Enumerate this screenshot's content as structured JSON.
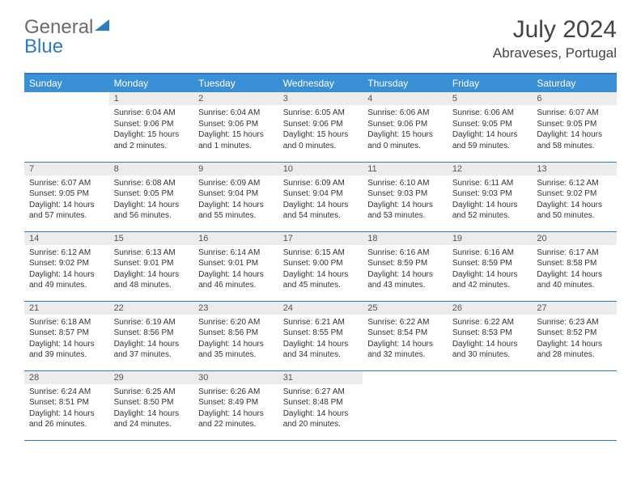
{
  "logo": {
    "part1": "General",
    "part2": "Blue"
  },
  "title": "July 2024",
  "location": "Abraveses, Portugal",
  "colors": {
    "header_bg": "#3b8fd4",
    "border": "#2f7bbf",
    "daynum_bg": "#ececec",
    "text": "#333333"
  },
  "weekdays": [
    "Sunday",
    "Monday",
    "Tuesday",
    "Wednesday",
    "Thursday",
    "Friday",
    "Saturday"
  ],
  "weeks": [
    [
      {
        "n": "",
        "sr": "",
        "ss": "",
        "dl": ""
      },
      {
        "n": "1",
        "sr": "Sunrise: 6:04 AM",
        "ss": "Sunset: 9:06 PM",
        "dl": "Daylight: 15 hours and 2 minutes."
      },
      {
        "n": "2",
        "sr": "Sunrise: 6:04 AM",
        "ss": "Sunset: 9:06 PM",
        "dl": "Daylight: 15 hours and 1 minutes."
      },
      {
        "n": "3",
        "sr": "Sunrise: 6:05 AM",
        "ss": "Sunset: 9:06 PM",
        "dl": "Daylight: 15 hours and 0 minutes."
      },
      {
        "n": "4",
        "sr": "Sunrise: 6:06 AM",
        "ss": "Sunset: 9:06 PM",
        "dl": "Daylight: 15 hours and 0 minutes."
      },
      {
        "n": "5",
        "sr": "Sunrise: 6:06 AM",
        "ss": "Sunset: 9:05 PM",
        "dl": "Daylight: 14 hours and 59 minutes."
      },
      {
        "n": "6",
        "sr": "Sunrise: 6:07 AM",
        "ss": "Sunset: 9:05 PM",
        "dl": "Daylight: 14 hours and 58 minutes."
      }
    ],
    [
      {
        "n": "7",
        "sr": "Sunrise: 6:07 AM",
        "ss": "Sunset: 9:05 PM",
        "dl": "Daylight: 14 hours and 57 minutes."
      },
      {
        "n": "8",
        "sr": "Sunrise: 6:08 AM",
        "ss": "Sunset: 9:05 PM",
        "dl": "Daylight: 14 hours and 56 minutes."
      },
      {
        "n": "9",
        "sr": "Sunrise: 6:09 AM",
        "ss": "Sunset: 9:04 PM",
        "dl": "Daylight: 14 hours and 55 minutes."
      },
      {
        "n": "10",
        "sr": "Sunrise: 6:09 AM",
        "ss": "Sunset: 9:04 PM",
        "dl": "Daylight: 14 hours and 54 minutes."
      },
      {
        "n": "11",
        "sr": "Sunrise: 6:10 AM",
        "ss": "Sunset: 9:03 PM",
        "dl": "Daylight: 14 hours and 53 minutes."
      },
      {
        "n": "12",
        "sr": "Sunrise: 6:11 AM",
        "ss": "Sunset: 9:03 PM",
        "dl": "Daylight: 14 hours and 52 minutes."
      },
      {
        "n": "13",
        "sr": "Sunrise: 6:12 AM",
        "ss": "Sunset: 9:02 PM",
        "dl": "Daylight: 14 hours and 50 minutes."
      }
    ],
    [
      {
        "n": "14",
        "sr": "Sunrise: 6:12 AM",
        "ss": "Sunset: 9:02 PM",
        "dl": "Daylight: 14 hours and 49 minutes."
      },
      {
        "n": "15",
        "sr": "Sunrise: 6:13 AM",
        "ss": "Sunset: 9:01 PM",
        "dl": "Daylight: 14 hours and 48 minutes."
      },
      {
        "n": "16",
        "sr": "Sunrise: 6:14 AM",
        "ss": "Sunset: 9:01 PM",
        "dl": "Daylight: 14 hours and 46 minutes."
      },
      {
        "n": "17",
        "sr": "Sunrise: 6:15 AM",
        "ss": "Sunset: 9:00 PM",
        "dl": "Daylight: 14 hours and 45 minutes."
      },
      {
        "n": "18",
        "sr": "Sunrise: 6:16 AM",
        "ss": "Sunset: 8:59 PM",
        "dl": "Daylight: 14 hours and 43 minutes."
      },
      {
        "n": "19",
        "sr": "Sunrise: 6:16 AM",
        "ss": "Sunset: 8:59 PM",
        "dl": "Daylight: 14 hours and 42 minutes."
      },
      {
        "n": "20",
        "sr": "Sunrise: 6:17 AM",
        "ss": "Sunset: 8:58 PM",
        "dl": "Daylight: 14 hours and 40 minutes."
      }
    ],
    [
      {
        "n": "21",
        "sr": "Sunrise: 6:18 AM",
        "ss": "Sunset: 8:57 PM",
        "dl": "Daylight: 14 hours and 39 minutes."
      },
      {
        "n": "22",
        "sr": "Sunrise: 6:19 AM",
        "ss": "Sunset: 8:56 PM",
        "dl": "Daylight: 14 hours and 37 minutes."
      },
      {
        "n": "23",
        "sr": "Sunrise: 6:20 AM",
        "ss": "Sunset: 8:56 PM",
        "dl": "Daylight: 14 hours and 35 minutes."
      },
      {
        "n": "24",
        "sr": "Sunrise: 6:21 AM",
        "ss": "Sunset: 8:55 PM",
        "dl": "Daylight: 14 hours and 34 minutes."
      },
      {
        "n": "25",
        "sr": "Sunrise: 6:22 AM",
        "ss": "Sunset: 8:54 PM",
        "dl": "Daylight: 14 hours and 32 minutes."
      },
      {
        "n": "26",
        "sr": "Sunrise: 6:22 AM",
        "ss": "Sunset: 8:53 PM",
        "dl": "Daylight: 14 hours and 30 minutes."
      },
      {
        "n": "27",
        "sr": "Sunrise: 6:23 AM",
        "ss": "Sunset: 8:52 PM",
        "dl": "Daylight: 14 hours and 28 minutes."
      }
    ],
    [
      {
        "n": "28",
        "sr": "Sunrise: 6:24 AM",
        "ss": "Sunset: 8:51 PM",
        "dl": "Daylight: 14 hours and 26 minutes."
      },
      {
        "n": "29",
        "sr": "Sunrise: 6:25 AM",
        "ss": "Sunset: 8:50 PM",
        "dl": "Daylight: 14 hours and 24 minutes."
      },
      {
        "n": "30",
        "sr": "Sunrise: 6:26 AM",
        "ss": "Sunset: 8:49 PM",
        "dl": "Daylight: 14 hours and 22 minutes."
      },
      {
        "n": "31",
        "sr": "Sunrise: 6:27 AM",
        "ss": "Sunset: 8:48 PM",
        "dl": "Daylight: 14 hours and 20 minutes."
      },
      {
        "n": "",
        "sr": "",
        "ss": "",
        "dl": ""
      },
      {
        "n": "",
        "sr": "",
        "ss": "",
        "dl": ""
      },
      {
        "n": "",
        "sr": "",
        "ss": "",
        "dl": ""
      }
    ]
  ]
}
